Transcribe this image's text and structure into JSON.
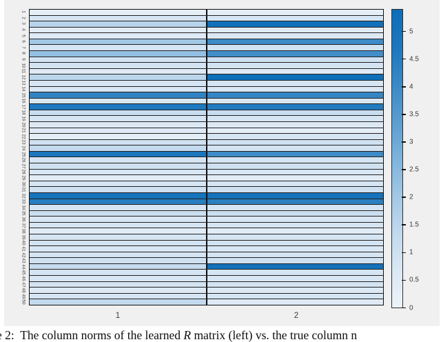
{
  "figure": {
    "background_color": "#f0f0f0",
    "grid_line_color": "#1a1a1a",
    "caption": {
      "prefix": "e 2:",
      "body_before_math": "  The column norms of the learned ",
      "math_symbol": "R",
      "body_after_math": " matrix (left) vs. the true column n"
    }
  },
  "chart_data": {
    "type": "heatmap",
    "title": "",
    "xlabel": "",
    "ylabel": "",
    "x_categories": [
      "1",
      "2"
    ],
    "y_categories": [
      "1",
      "2",
      "3",
      "4",
      "5",
      "6",
      "7",
      "8",
      "9",
      "10",
      "11",
      "12",
      "13",
      "14",
      "15",
      "16",
      "17",
      "18",
      "19",
      "20",
      "21",
      "22",
      "23",
      "24",
      "25",
      "26",
      "27",
      "28",
      "29",
      "30",
      "31",
      "32",
      "33",
      "34",
      "35",
      "36",
      "37",
      "38",
      "39",
      "40",
      "41",
      "42",
      "43",
      "44",
      "45",
      "46",
      "47",
      "48",
      "49",
      "50"
    ],
    "series": [
      {
        "name": "1",
        "values": [
          0.3,
          0.8,
          1.6,
          0.4,
          0.5,
          2.0,
          0.8,
          2.3,
          0.9,
          0.9,
          0.5,
          1.5,
          0.8,
          0.7,
          4.3,
          0.7,
          4.7,
          1.2,
          0.8,
          0.6,
          0.5,
          0.3,
          1.0,
          1.3,
          4.8,
          0.8,
          1.0,
          0.7,
          0.4,
          0.8,
          1.0,
          4.9,
          4.5,
          0.8,
          1.1,
          0.7,
          0.8,
          0.4,
          0.8,
          0.9,
          0.7,
          0.8,
          1.0,
          1.2,
          0.8,
          0.7,
          0.9,
          0.6,
          0.8,
          1.3
        ]
      },
      {
        "name": "2",
        "values": [
          0.3,
          0.8,
          5.2,
          0.4,
          0.6,
          4.0,
          0.9,
          3.9,
          1.0,
          0.9,
          0.5,
          5.3,
          0.8,
          0.7,
          4.2,
          0.7,
          4.6,
          1.2,
          0.8,
          0.6,
          0.3,
          0.8,
          1.0,
          0.9,
          4.0,
          0.8,
          1.0,
          0.7,
          0.4,
          0.8,
          1.0,
          5.0,
          4.4,
          0.8,
          1.1,
          0.7,
          0.8,
          0.4,
          0.8,
          0.9,
          0.7,
          0.8,
          1.0,
          5.1,
          0.8,
          0.7,
          0.9,
          0.6,
          0.8,
          0.5
        ]
      }
    ],
    "colorbar": {
      "min": 0,
      "max": 5.41,
      "tick_labels": [
        "0",
        "0.5",
        "1",
        "1.5",
        "2",
        "2.5",
        "3",
        "3.5",
        "4",
        "4.5",
        "5"
      ],
      "position": "right"
    },
    "colormap_stops": [
      {
        "t": 0.0,
        "rgb": [
          237,
          243,
          250
        ]
      },
      {
        "t": 0.15,
        "rgb": [
          214,
          229,
          243
        ]
      },
      {
        "t": 0.3,
        "rgb": [
          182,
          211,
          235
        ]
      },
      {
        "t": 0.45,
        "rgb": [
          140,
          188,
          224
        ]
      },
      {
        "t": 0.6,
        "rgb": [
          96,
          161,
          210
        ]
      },
      {
        "t": 0.75,
        "rgb": [
          58,
          137,
          198
        ]
      },
      {
        "t": 0.9,
        "rgb": [
          23,
          116,
          188
        ]
      },
      {
        "t": 1.0,
        "rgb": [
          13,
          110,
          184
        ]
      }
    ],
    "legend": null,
    "grid": true
  }
}
